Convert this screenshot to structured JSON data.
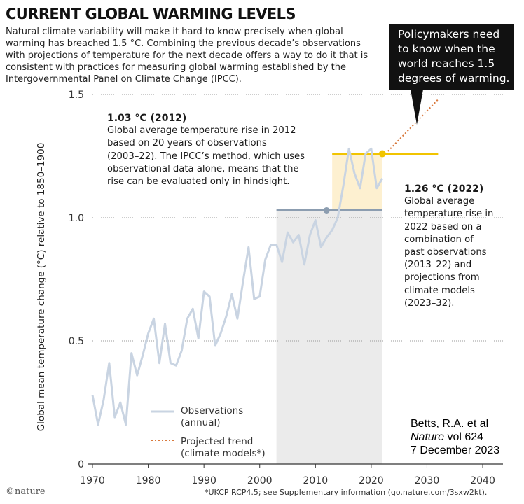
{
  "header": {
    "title": "CURRENT GLOBAL WARMING LEVELS",
    "intro_lines": [
      "Natural climate variability will make it hard to know precisely when global",
      "warming has breached 1.5 °C. Combining the previous decade’s observations",
      "with projections of temperature for the next decade offers a way to do it that is",
      "consistent with practices for measuring global warming established by the",
      "Intergovernmental Panel on Climate Change (IPCC)."
    ]
  },
  "callout": {
    "lines": [
      "Policymakers need",
      "to know when the",
      "world reaches 1.5",
      "degrees of warming."
    ]
  },
  "annotation_2012": {
    "heading": "1.03 °C (2012)",
    "lines": [
      "Global average temperature rise in 2012",
      "based on 20 years of observations",
      "(2003–22). The IPCC’s method, which uses",
      "observational data alone, means that the",
      "rise can be evaluated  only in hindsight."
    ]
  },
  "annotation_2022": {
    "heading": "1.26 °C (2022)",
    "lines": [
      "Global average",
      "temperature rise in",
      "2022 based on a",
      "combination of",
      "past observations",
      "(2013–22) and",
      "projections from",
      "climate models",
      "(2023–32)."
    ]
  },
  "legend": {
    "observations": [
      "Observations",
      "(annual)"
    ],
    "projected": [
      "Projected trend",
      "(climate models*)"
    ]
  },
  "credit": {
    "author": "Betts, R.A. et al",
    "journal": "Nature",
    "volume": " vol 624",
    "date": "7 December 2023"
  },
  "footer": {
    "logo": "©nature",
    "note": "*UKCP RCP4.5; see Supplementary information (go.nature.com/3sxw2kt)."
  },
  "colors": {
    "observations": "#c9d4e2",
    "projected": "#d9793c",
    "level_2022": "#f1c400",
    "level_2012": "#8c9db0",
    "shade_window_2012": "#ebebeb",
    "shade_window_2022": "#fdf0d0",
    "grid": "#999999",
    "callout_bg": "#111111"
  },
  "chart_data": {
    "type": "line",
    "ylabel": "Global mean temperature change (°C) relative to 1850–1900",
    "xlim": [
      1970,
      2041
    ],
    "ylim": [
      0,
      1.5
    ],
    "x_ticks": [
      1970,
      1980,
      1990,
      2000,
      2010,
      2020,
      2030,
      2040
    ],
    "y_ticks": [
      0,
      0.5,
      1.0,
      1.5
    ],
    "y_tick_labels": [
      "0",
      "0.5",
      "1.0",
      "1.5"
    ],
    "grid": "horizontal dotted",
    "series": [
      {
        "name": "Observations (annual)",
        "x": [
          1970,
          1971,
          1972,
          1973,
          1974,
          1975,
          1976,
          1977,
          1978,
          1979,
          1980,
          1981,
          1982,
          1983,
          1984,
          1985,
          1986,
          1987,
          1988,
          1989,
          1990,
          1991,
          1992,
          1993,
          1994,
          1995,
          1996,
          1997,
          1998,
          1999,
          2000,
          2001,
          2002,
          2003,
          2004,
          2005,
          2006,
          2007,
          2008,
          2009,
          2010,
          2011,
          2012,
          2013,
          2014,
          2015,
          2016,
          2017,
          2018,
          2019,
          2020,
          2021,
          2022
        ],
        "values": [
          0.28,
          0.16,
          0.26,
          0.41,
          0.19,
          0.25,
          0.16,
          0.45,
          0.36,
          0.44,
          0.53,
          0.59,
          0.41,
          0.57,
          0.41,
          0.4,
          0.46,
          0.59,
          0.63,
          0.51,
          0.7,
          0.68,
          0.48,
          0.53,
          0.6,
          0.69,
          0.59,
          0.74,
          0.88,
          0.67,
          0.68,
          0.83,
          0.89,
          0.89,
          0.82,
          0.94,
          0.9,
          0.93,
          0.81,
          0.93,
          0.99,
          0.88,
          0.92,
          0.95,
          1.0,
          1.13,
          1.28,
          1.18,
          1.12,
          1.26,
          1.28,
          1.12,
          1.16
        ]
      },
      {
        "name": "Projected trend (climate models*)",
        "x": [
          2023,
          2032
        ],
        "values": [
          1.27,
          1.48
        ]
      }
    ],
    "levels": [
      {
        "label": "1.03 °C (2012)",
        "year": 2012,
        "value": 1.03,
        "window": [
          2003,
          2022
        ]
      },
      {
        "label": "1.26 °C (2022)",
        "year": 2022,
        "value": 1.26,
        "window": [
          2013,
          2032
        ],
        "shaded_window": [
          2013,
          2022
        ]
      }
    ]
  }
}
